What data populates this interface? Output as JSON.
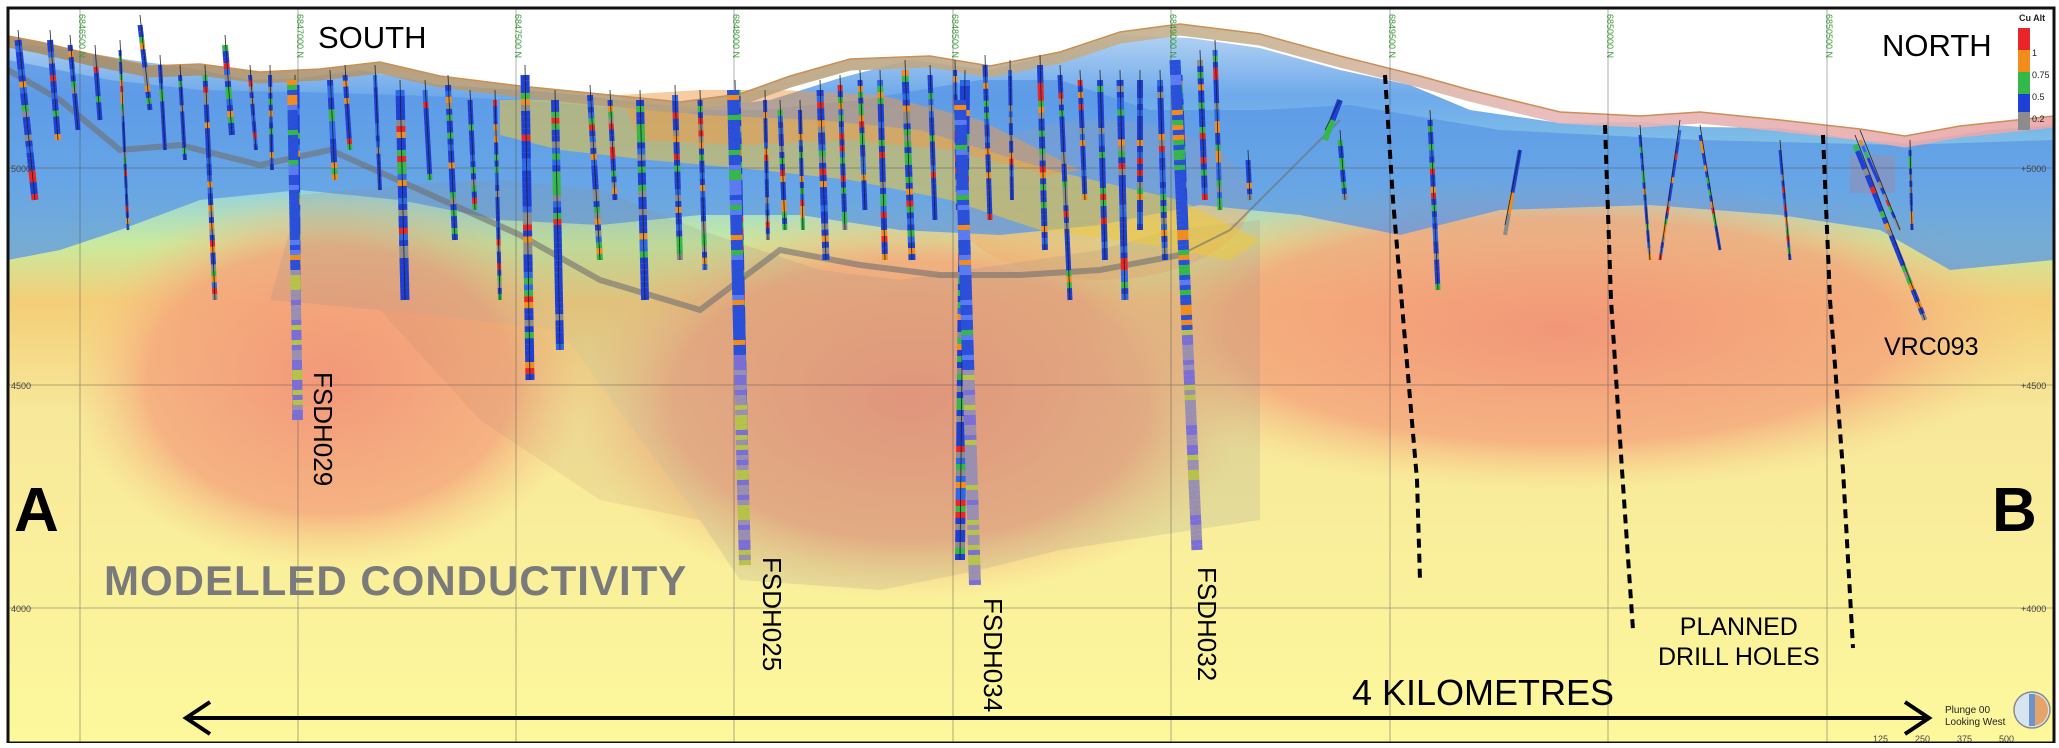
{
  "labels": {
    "section_start": "A",
    "section_end": "B",
    "south": "SOUTH",
    "north": "NORTH",
    "modelled": "MODELLED CONDUCTIVITY",
    "planned": "PLANNED\nDRILL HOLES",
    "distance": "4 KILOMETRES",
    "plunge": "Plunge 00\nLooking West"
  },
  "drill_holes": [
    {
      "name": "FSDH029"
    },
    {
      "name": "FSDH025"
    },
    {
      "name": "FSDH034"
    },
    {
      "name": "FSDH032"
    },
    {
      "name": "VRC093"
    }
  ],
  "elevations": {
    "left": [
      "5000",
      "4500",
      "4000"
    ],
    "right": [
      "+5000",
      "+4500",
      "+4000"
    ]
  },
  "northings": [
    "6846500 N",
    "6847000 N",
    "6847500 N",
    "6848000 N",
    "6848500 N",
    "6849000 N",
    "6849500 N",
    "6850000 N",
    "6850500 N"
  ],
  "legend": {
    "title": "Cu Alt",
    "entries": [
      {
        "value": "1",
        "color": "#e8262a"
      },
      {
        "value": "0.75",
        "color": "#f28c1c"
      },
      {
        "value": "0.5",
        "color": "#33b849"
      },
      {
        "value": "0.2",
        "color": "#1d3fd6"
      }
    ],
    "below_color": "#8c8c8c"
  },
  "scale_ticks": [
    "125",
    "250",
    "375",
    "500"
  ],
  "colors": {
    "conductivity_low": "#fbf79a",
    "conductivity_high": "#f2957a",
    "resistive": "#5b9be6"
  }
}
